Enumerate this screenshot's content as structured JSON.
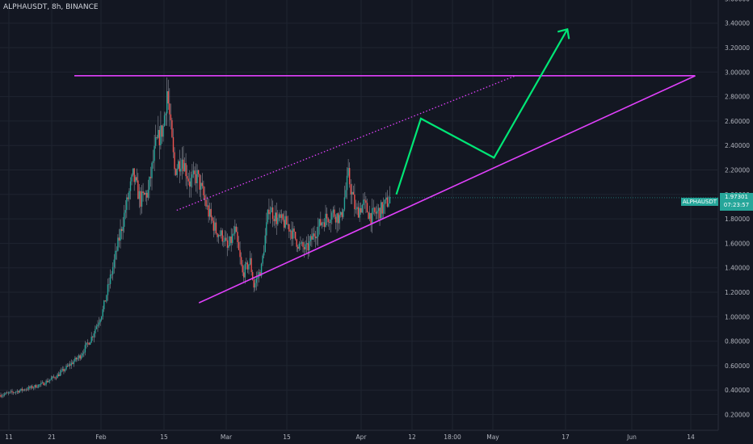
{
  "header": {
    "ticker": "ALPHAUSDT, 8h, BINANCE"
  },
  "price_tag": {
    "symbol": "ALPHAUSDT",
    "price": "1.97301",
    "countdown": "07:23:57"
  },
  "colors": {
    "background": "#131722",
    "grid": "#1f2430",
    "up": "#26a69a",
    "down": "#ef5350",
    "pattern": "#e040fb",
    "projection": "#00e676",
    "text": "#b2b5be"
  },
  "chart_data": {
    "type": "candlestick",
    "timeframe": "8h",
    "ylim": [
      0.1,
      3.7
    ],
    "y_ticks": [
      "0.20000",
      "0.40000",
      "0.60000",
      "0.80000",
      "1.00000",
      "1.20000",
      "1.40000",
      "1.60000",
      "1.80000",
      "2.00000",
      "2.20000",
      "2.40000",
      "2.60000",
      "2.80000",
      "3.00000",
      "3.20000",
      "3.40000",
      "3.60000"
    ],
    "x_ticks": [
      "11",
      "21",
      "Feb",
      "15",
      "Mar",
      "15",
      "Apr",
      "12",
      "18:00",
      "May",
      "17",
      "Jun",
      "14"
    ],
    "price_path": [
      [
        0,
        0.36
      ],
      [
        3,
        0.38
      ],
      [
        8,
        0.42
      ],
      [
        11,
        0.45
      ],
      [
        15,
        0.52
      ],
      [
        18,
        0.6
      ],
      [
        21,
        0.68
      ],
      [
        24,
        0.83
      ],
      [
        27,
        1.05
      ],
      [
        30,
        1.45
      ],
      [
        33,
        1.88
      ],
      [
        35,
        2.15
      ],
      [
        37,
        1.95
      ],
      [
        39,
        2.02
      ],
      [
        41,
        2.4
      ],
      [
        43,
        2.55
      ],
      [
        44,
        2.85
      ],
      [
        46,
        2.2
      ],
      [
        48,
        2.3
      ],
      [
        50,
        2.1
      ],
      [
        52,
        2.15
      ],
      [
        55,
        1.85
      ],
      [
        57,
        1.7
      ],
      [
        59,
        1.65
      ],
      [
        60,
        1.55
      ],
      [
        62,
        1.7
      ],
      [
        64,
        1.35
      ],
      [
        66,
        1.45
      ],
      [
        67,
        1.25
      ],
      [
        69,
        1.4
      ],
      [
        71,
        1.9
      ],
      [
        73,
        1.8
      ],
      [
        76,
        1.75
      ],
      [
        79,
        1.58
      ],
      [
        81,
        1.55
      ],
      [
        83,
        1.68
      ],
      [
        85,
        1.78
      ],
      [
        88,
        1.85
      ],
      [
        90,
        1.8
      ],
      [
        92,
        2.15
      ],
      [
        94,
        1.85
      ],
      [
        96,
        1.92
      ],
      [
        98,
        1.82
      ],
      [
        101,
        1.88
      ],
      [
        103,
        1.97
      ]
    ],
    "upper_resistance": {
      "price": 2.97,
      "from_day": 43,
      "to_day": 183
    },
    "ascending_support": {
      "from": [
        67,
        1.1
      ],
      "to": [
        183,
        2.97
      ]
    },
    "dotted_channel": {
      "from": [
        53,
        1.87
      ],
      "to": [
        148,
        2.93
      ]
    },
    "projection_path": [
      [
        106,
        2.0
      ],
      [
        114,
        2.62
      ],
      [
        131,
        2.3
      ],
      [
        150,
        3.35
      ]
    ]
  }
}
